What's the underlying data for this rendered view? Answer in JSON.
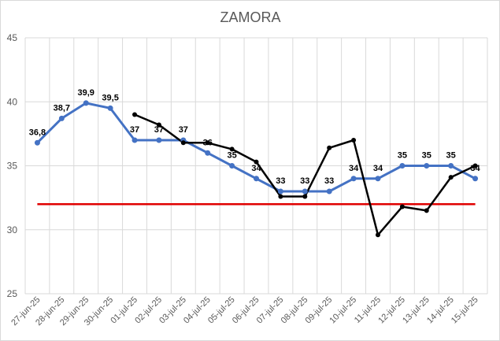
{
  "chart_data": {
    "type": "line",
    "title": "ZAMORA",
    "categories": [
      "27-jun-25",
      "28-jun-25",
      "29-jun-25",
      "30-jun-25",
      "01-jul-25",
      "02-jul-25",
      "03-jul-25",
      "04-jul-25",
      "05-jul-25",
      "06-jul-25",
      "07-jul-25",
      "08-jul-25",
      "09-jul-25",
      "10-jul-25",
      "11-jul-25",
      "12-jul-25",
      "13-jul-25",
      "14-jul-25",
      "15-jul-25"
    ],
    "ylim": [
      25,
      45
    ],
    "yticks": [
      25,
      30,
      35,
      40,
      45
    ],
    "grid": true,
    "series": [
      {
        "color": "#4472C4",
        "values": [
          36.8,
          38.7,
          39.9,
          39.5,
          37,
          37,
          37,
          36,
          35,
          34,
          33,
          33,
          33,
          34,
          34,
          35,
          35,
          35,
          34
        ],
        "labels": [
          "36,8",
          "38,7",
          "39,9",
          "39,5",
          "37",
          "37",
          "37",
          "36",
          "35",
          "34",
          "33",
          "33",
          "33",
          "34",
          "34",
          "35",
          "35",
          "35",
          "34"
        ]
      },
      {
        "color": "#000000",
        "values": [
          null,
          null,
          null,
          null,
          39,
          38.2,
          36.8,
          36.8,
          36.3,
          35.3,
          32.6,
          32.6,
          36.4,
          37,
          29.6,
          31.8,
          31.5,
          34.1,
          35
        ]
      },
      {
        "color": "#E00000",
        "values": [
          32,
          32,
          32,
          32,
          32,
          32,
          32,
          32,
          32,
          32,
          32,
          32,
          32,
          32,
          32,
          32,
          32,
          32,
          32
        ]
      }
    ]
  }
}
